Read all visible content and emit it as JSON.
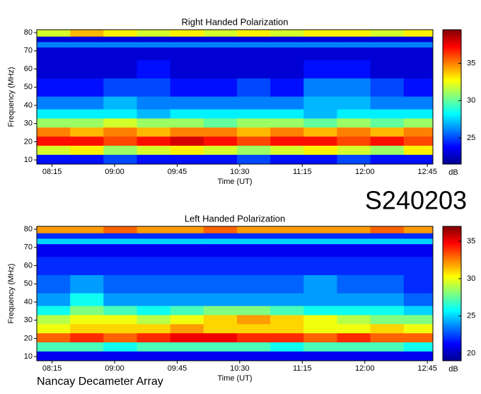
{
  "header": {
    "code": "S240203",
    "instrument": "Nancay Decameter Array"
  },
  "chart_data": [
    {
      "type": "heatmap",
      "title": "Right Handed Polarization",
      "xlabel": "Time (UT)",
      "ylabel": "Frequency (MHz)",
      "colorbar_label": "dB",
      "colormap": "jet",
      "xlim": [
        484,
        769
      ],
      "xticks": [
        {
          "value": 495,
          "label": "08:15"
        },
        {
          "value": 540,
          "label": "09:00"
        },
        {
          "value": 585,
          "label": "09:45"
        },
        {
          "value": 630,
          "label": "10:30"
        },
        {
          "value": 675,
          "label": "11:15"
        },
        {
          "value": 720,
          "label": "12:00"
        },
        {
          "value": 765,
          "label": "12:45"
        }
      ],
      "ylim": [
        7.7,
        81.6
      ],
      "yticks": [
        10,
        20,
        30,
        40,
        50,
        60,
        70,
        80
      ],
      "clim": [
        21.5,
        39.5
      ],
      "cticks": [
        25,
        30,
        35
      ],
      "x_bins": [
        484,
        508,
        532,
        556,
        580,
        604,
        628,
        652,
        676,
        700,
        724,
        748,
        769
      ],
      "y_bins": [
        7.7,
        13,
        18,
        23,
        28,
        33,
        38,
        45,
        55,
        65,
        72,
        75,
        78,
        81.6
      ],
      "values": [
        [
          24,
          24,
          25,
          24,
          24,
          24,
          25,
          24,
          24,
          25,
          24,
          24
        ],
        [
          32,
          33,
          31,
          32,
          33,
          32,
          31,
          32,
          33,
          32,
          31,
          33
        ],
        [
          37,
          37,
          36,
          37,
          38,
          37,
          36,
          37,
          37,
          36,
          37,
          36
        ],
        [
          35,
          34,
          35,
          34,
          35,
          35,
          34,
          35,
          34,
          35,
          34,
          35
        ],
        [
          31,
          31,
          32,
          31,
          31,
          30,
          31,
          31,
          30,
          31,
          30,
          31
        ],
        [
          28,
          28,
          28,
          27,
          28,
          28,
          28,
          28,
          27,
          28,
          28,
          28
        ],
        [
          26,
          26,
          27,
          26,
          26,
          26,
          26,
          26,
          27,
          27,
          26,
          26
        ],
        [
          24,
          24,
          25,
          25,
          24,
          24,
          25,
          24,
          26,
          26,
          25,
          24
        ],
        [
          23,
          23,
          23,
          24,
          23,
          23,
          23,
          23,
          24,
          24,
          23,
          23
        ],
        [
          23,
          23,
          23,
          23,
          23,
          23,
          23,
          23,
          23,
          23,
          23,
          23
        ],
        [
          26,
          26,
          26,
          26,
          26,
          26,
          26,
          26,
          26,
          26,
          26,
          26
        ],
        [
          23,
          23,
          23,
          23,
          23,
          23,
          23,
          23,
          23,
          23,
          23,
          23
        ],
        [
          32,
          34,
          33,
          32,
          33,
          32,
          33,
          32,
          33,
          33,
          32,
          33
        ]
      ]
    },
    {
      "type": "heatmap",
      "title": "Left Handed Polarization",
      "xlabel": "Time (UT)",
      "ylabel": "Frequency (MHz)",
      "colorbar_label": "dB",
      "colormap": "jet",
      "xlim": [
        484,
        769
      ],
      "xticks": [
        {
          "value": 495,
          "label": "08:15"
        },
        {
          "value": 540,
          "label": "09:00"
        },
        {
          "value": 585,
          "label": "09:45"
        },
        {
          "value": 630,
          "label": "10:30"
        },
        {
          "value": 675,
          "label": "11:15"
        },
        {
          "value": 720,
          "label": "12:00"
        },
        {
          "value": 765,
          "label": "12:45"
        }
      ],
      "ylim": [
        7.7,
        81.6
      ],
      "yticks": [
        10,
        20,
        30,
        40,
        50,
        60,
        70,
        80
      ],
      "clim": [
        19,
        37
      ],
      "cticks": [
        20,
        25,
        30,
        35
      ],
      "x_bins": [
        484,
        508,
        532,
        556,
        580,
        604,
        628,
        652,
        676,
        700,
        724,
        748,
        769
      ],
      "y_bins": [
        7.7,
        13,
        18,
        23,
        28,
        33,
        38,
        45,
        55,
        65,
        72,
        75,
        78,
        81.6
      ],
      "values": [
        [
          21,
          21,
          21,
          21,
          21,
          21,
          21,
          21,
          21,
          21,
          21,
          21
        ],
        [
          27,
          27,
          26,
          27,
          27,
          27,
          27,
          26,
          27,
          27,
          27,
          26
        ],
        [
          33,
          34,
          33,
          34,
          35,
          35,
          34,
          34,
          33,
          34,
          33,
          33
        ],
        [
          30,
          31,
          31,
          31,
          32,
          31,
          31,
          31,
          30,
          30,
          31,
          30
        ],
        [
          29,
          30,
          30,
          29,
          30,
          31,
          32,
          31,
          30,
          29,
          28,
          28
        ],
        [
          26,
          28,
          27,
          26,
          27,
          28,
          28,
          27,
          26,
          26,
          26,
          25
        ],
        [
          24,
          26,
          24,
          24,
          24,
          24,
          24,
          24,
          24,
          24,
          24,
          23
        ],
        [
          23,
          24,
          23,
          23,
          23,
          23,
          23,
          23,
          24,
          23,
          23,
          22
        ],
        [
          22,
          22,
          22,
          22,
          22,
          22,
          22,
          22,
          22,
          22,
          22,
          22
        ],
        [
          21,
          21,
          21,
          21,
          21,
          21,
          21,
          21,
          21,
          21,
          21,
          21
        ],
        [
          25,
          25,
          25,
          25,
          25,
          25,
          25,
          25,
          25,
          25,
          25,
          25
        ],
        [
          22,
          22,
          22,
          22,
          22,
          22,
          22,
          22,
          22,
          22,
          22,
          22
        ],
        [
          32,
          32,
          33,
          32,
          32,
          33,
          32,
          32,
          32,
          32,
          33,
          32
        ]
      ]
    }
  ]
}
